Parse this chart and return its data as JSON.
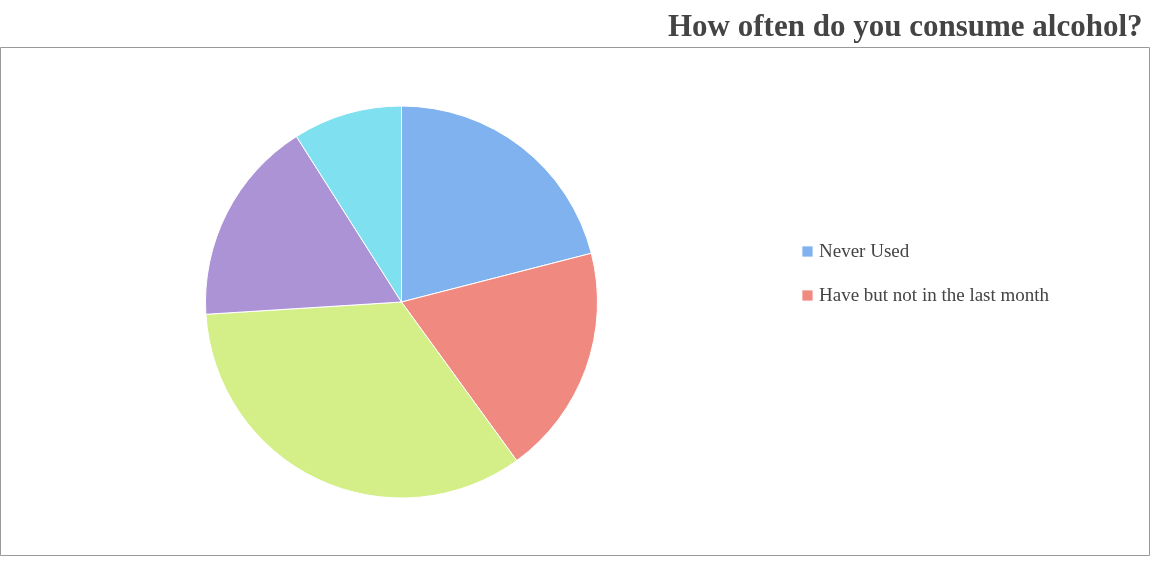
{
  "chart_data": {
    "type": "pie",
    "title": "How often do you consume alcohol?",
    "categories": [
      "Never Used",
      "Have but not in the last month",
      null,
      null,
      null
    ],
    "values": [
      21,
      19,
      34,
      17,
      9
    ],
    "colors": [
      "#7fb2ee",
      "#f08a80",
      "#d4ee88",
      "#ab93d6",
      "#7fe0f0"
    ],
    "legend": "right"
  }
}
